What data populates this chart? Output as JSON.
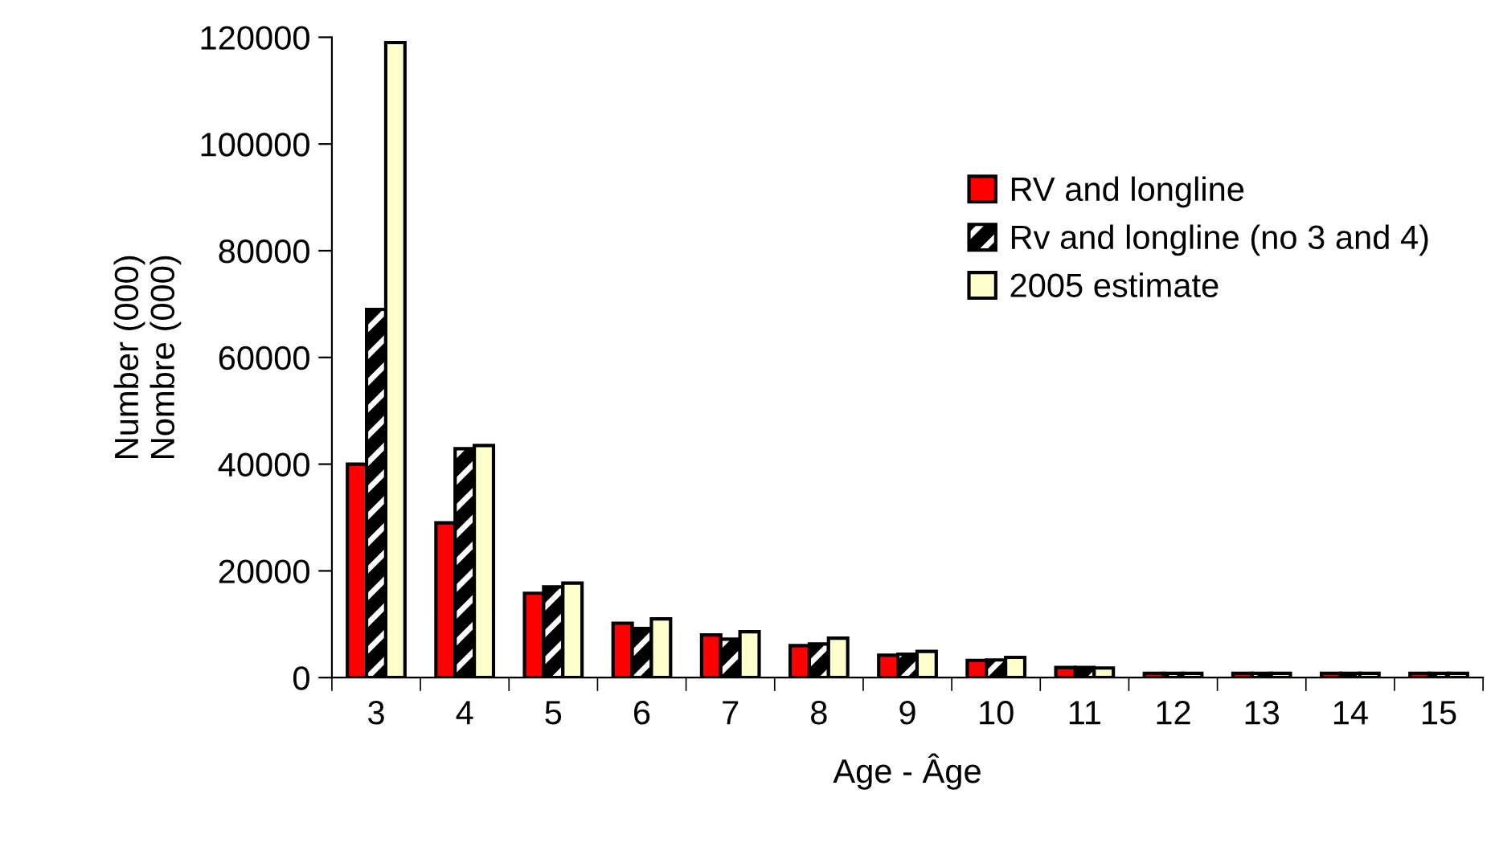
{
  "chart_data": {
    "type": "bar",
    "xlabel": "Age - Âge",
    "ylabel": "Number (000)\nNombre (000)",
    "categories": [
      "3",
      "4",
      "5",
      "6",
      "7",
      "8",
      "9",
      "10",
      "11",
      "12",
      "13",
      "14",
      "15"
    ],
    "series": [
      {
        "name": "RV and longline",
        "color": "#ff0000",
        "values": [
          40000,
          29000,
          15800,
          10200,
          8000,
          6000,
          4200,
          3200,
          1900,
          800,
          800,
          800,
          800
        ]
      },
      {
        "name": "Rv and longline (no 3 and 4)",
        "color": "#000000",
        "values": [
          69000,
          42900,
          17000,
          9200,
          7200,
          6300,
          4400,
          3300,
          1900,
          800,
          800,
          800,
          800
        ]
      },
      {
        "name": "2005 estimate",
        "color": "#ffffcc",
        "values": [
          119000,
          43500,
          17700,
          11000,
          8600,
          7400,
          4900,
          3800,
          1800,
          800,
          800,
          800,
          800
        ]
      }
    ],
    "ylim": [
      0,
      120000
    ],
    "yticks": [
      0,
      20000,
      40000,
      60000,
      80000,
      100000,
      120000
    ],
    "grid": false,
    "legend": "top right"
  }
}
